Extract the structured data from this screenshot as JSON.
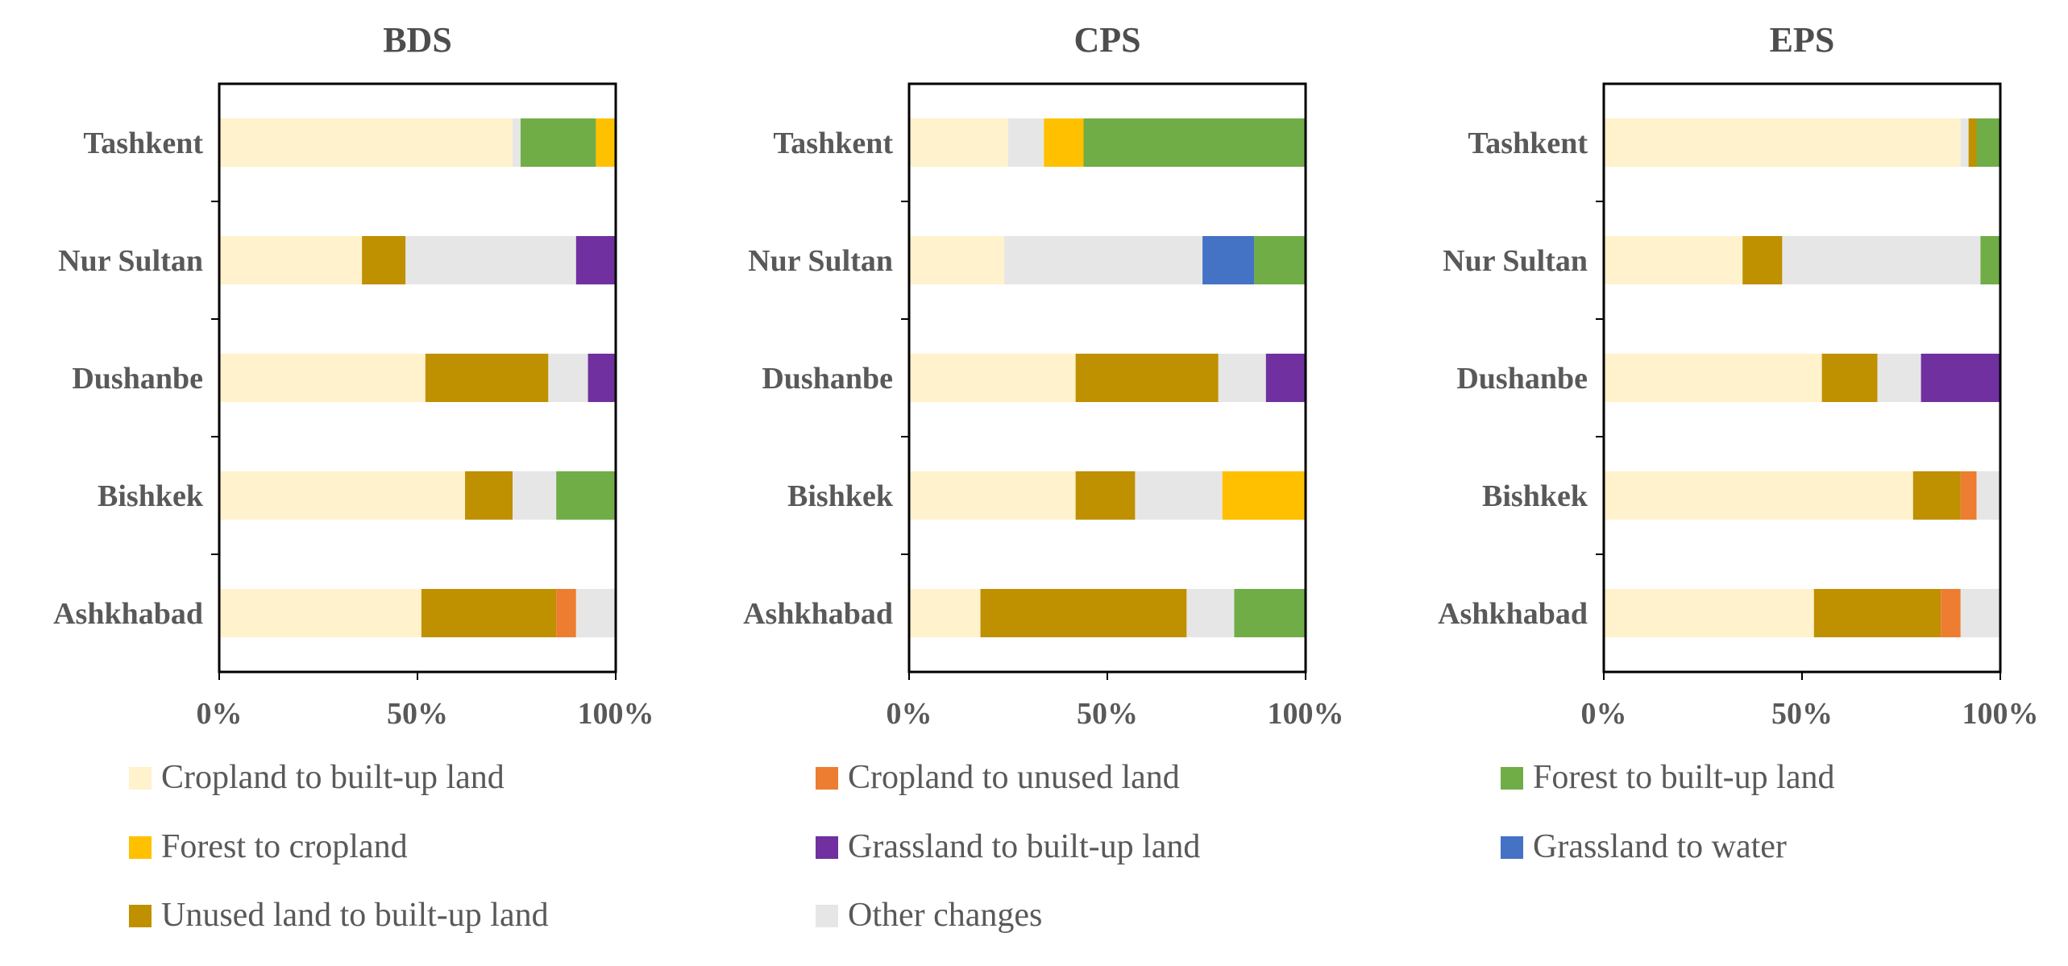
{
  "chart_data": {
    "type": "bar",
    "orientation": "horizontal",
    "stacked": "percent",
    "legend_position": "bottom",
    "categories": [
      "Tashkent",
      "Nur Sultan",
      "Dushanbe",
      "Bishkek",
      "Ashkhabad"
    ],
    "x_ticks": [
      "0%",
      "50%",
      "100%"
    ],
    "xlim": [
      0,
      100
    ],
    "legend": [
      {
        "key": "crop_built",
        "label": "Cropland to built-up land",
        "color": "#fff2cc"
      },
      {
        "key": "crop_unused",
        "label": "Cropland to unused land",
        "color": "#ed7d31"
      },
      {
        "key": "forest_built",
        "label": "Forest to built-up land",
        "color": "#70ad47"
      },
      {
        "key": "forest_crop",
        "label": "Forest to cropland",
        "color": "#ffc000"
      },
      {
        "key": "grass_built",
        "label": "Grassland to built-up land",
        "color": "#7030a0"
      },
      {
        "key": "grass_water",
        "label": "Grassland to water",
        "color": "#4472c4"
      },
      {
        "key": "unused_built",
        "label": "Unused land to built-up land",
        "color": "#bf9000"
      },
      {
        "key": "other",
        "label": "Other changes",
        "color": "#e7e6e6"
      }
    ],
    "panels": [
      {
        "title": "BDS",
        "series": [
          {
            "key": "crop_built",
            "values": [
              74,
              36,
              52,
              62,
              51
            ]
          },
          {
            "key": "unused_built",
            "values": [
              0,
              11,
              31,
              12,
              34
            ]
          },
          {
            "key": "crop_unused",
            "values": [
              0,
              0,
              0,
              0,
              5
            ]
          },
          {
            "key": "forest_built",
            "values": [
              19,
              0,
              0,
              15,
              0
            ]
          },
          {
            "key": "forest_crop",
            "values": [
              5,
              0,
              0,
              0,
              0
            ]
          },
          {
            "key": "grass_built",
            "values": [
              0,
              10,
              7,
              0,
              0
            ]
          },
          {
            "key": "grass_water",
            "values": [
              0,
              0,
              0,
              0,
              0
            ]
          },
          {
            "key": "other",
            "values": [
              2,
              43,
              10,
              11,
              10
            ]
          }
        ]
      },
      {
        "title": "CPS",
        "series": [
          {
            "key": "crop_built",
            "values": [
              25,
              24,
              42,
              42,
              18
            ]
          },
          {
            "key": "unused_built",
            "values": [
              0,
              0,
              36,
              15,
              52
            ]
          },
          {
            "key": "crop_unused",
            "values": [
              0,
              0,
              0,
              0,
              0
            ]
          },
          {
            "key": "forest_built",
            "values": [
              56,
              13,
              0,
              0,
              18
            ]
          },
          {
            "key": "forest_crop",
            "values": [
              10,
              0,
              0,
              21,
              0
            ]
          },
          {
            "key": "grass_built",
            "values": [
              0,
              0,
              10,
              0,
              0
            ]
          },
          {
            "key": "grass_water",
            "values": [
              0,
              13,
              0,
              0,
              0
            ]
          },
          {
            "key": "other",
            "values": [
              9,
              50,
              12,
              22,
              12
            ]
          }
        ]
      },
      {
        "title": "EPS",
        "series": [
          {
            "key": "crop_built",
            "values": [
              90,
              35,
              55,
              78,
              53
            ]
          },
          {
            "key": "unused_built",
            "values": [
              2,
              10,
              14,
              12,
              32
            ]
          },
          {
            "key": "crop_unused",
            "values": [
              0,
              0,
              0,
              4,
              5
            ]
          },
          {
            "key": "forest_built",
            "values": [
              6,
              5,
              0,
              0,
              0
            ]
          },
          {
            "key": "forest_crop",
            "values": [
              0,
              0,
              0,
              0,
              0
            ]
          },
          {
            "key": "grass_built",
            "values": [
              0,
              0,
              20,
              0,
              0
            ]
          },
          {
            "key": "grass_water",
            "values": [
              0,
              0,
              0,
              0,
              0
            ]
          },
          {
            "key": "other",
            "values": [
              2,
              50,
              11,
              6,
              10
            ]
          }
        ]
      }
    ]
  }
}
